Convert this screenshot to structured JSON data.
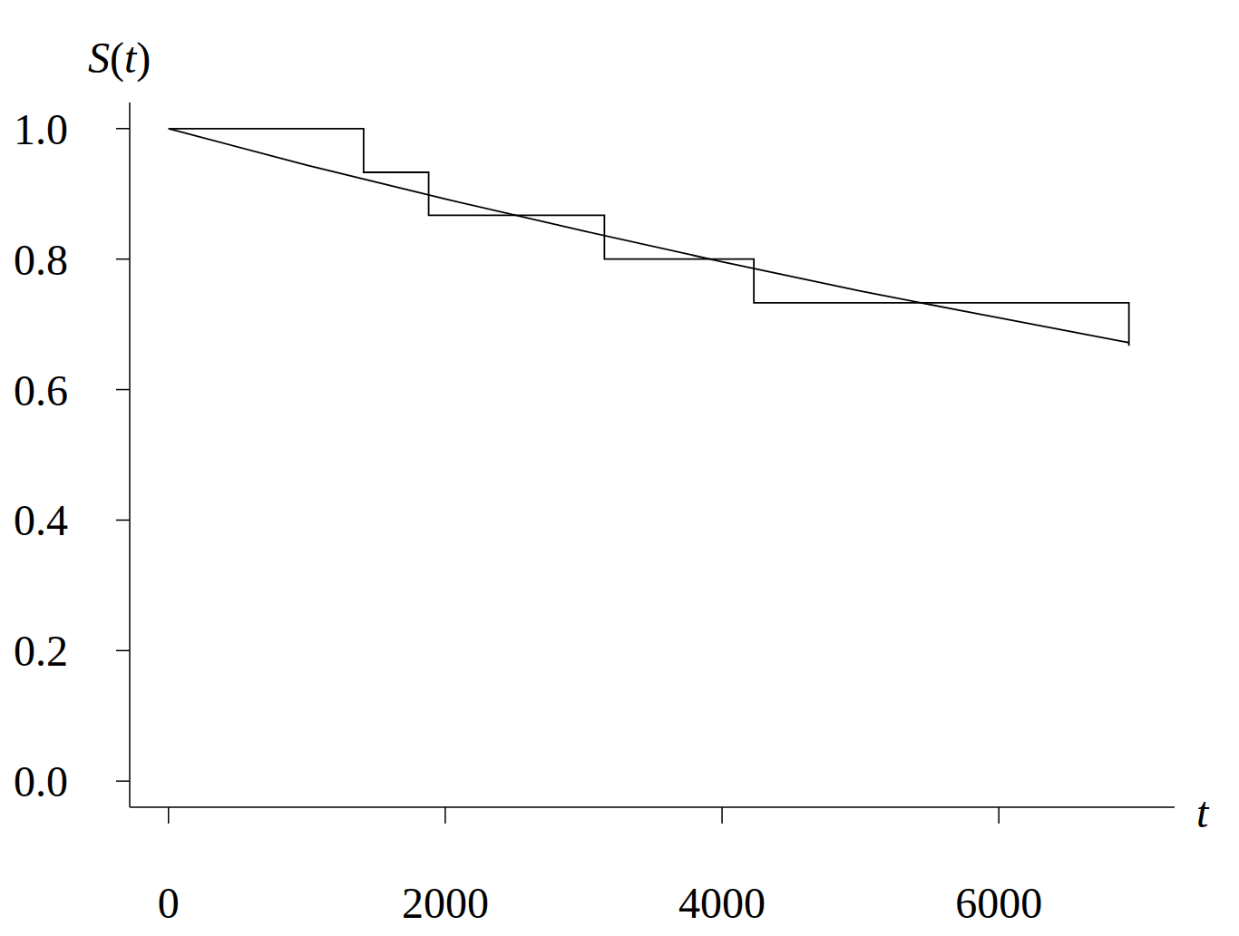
{
  "chart_data": {
    "type": "line",
    "x_label": "t",
    "y_label": "S(t)",
    "xlim": [
      -280,
      7270
    ],
    "ylim": [
      -0.04,
      1.04
    ],
    "xticks": [
      0,
      2000,
      4000,
      6000
    ],
    "yticks": [
      {
        "value": 0,
        "label": "0.0"
      },
      0.2,
      0.4,
      0.6,
      0.8,
      {
        "value": 1,
        "label": "1.0"
      }
    ],
    "grid": false,
    "series": [
      {
        "type": "step",
        "color": "#000000",
        "x": [
          0,
          1410,
          1880,
          3150,
          4230,
          6940
        ],
        "values": [
          1.0,
          0.933,
          0.867,
          0.8,
          0.733,
          0.667
        ]
      },
      {
        "type": "line",
        "color": "#000000",
        "x": [
          0,
          1000,
          2000,
          3000,
          4000,
          5000,
          6000,
          6940
        ],
        "values": [
          1.0,
          0.944,
          0.892,
          0.843,
          0.796,
          0.751,
          0.71,
          0.672
        ]
      }
    ]
  }
}
